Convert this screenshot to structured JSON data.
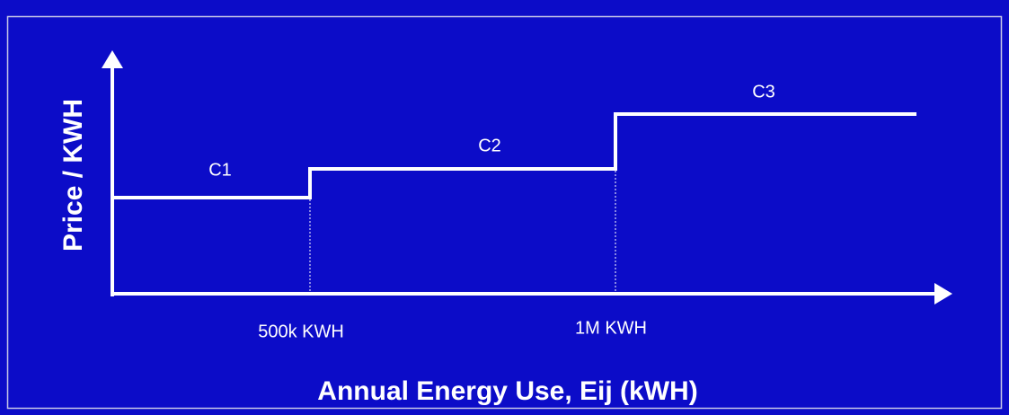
{
  "diagram": {
    "y_axis_label": "Price / KWH",
    "x_axis_label": "Annual Energy Use, Eij (kWH)",
    "tiers": [
      {
        "label": "C1"
      },
      {
        "label": "C2"
      },
      {
        "label": "C3"
      }
    ],
    "thresholds": [
      {
        "label": "500k KWH"
      },
      {
        "label": "1M KWH"
      }
    ]
  }
}
